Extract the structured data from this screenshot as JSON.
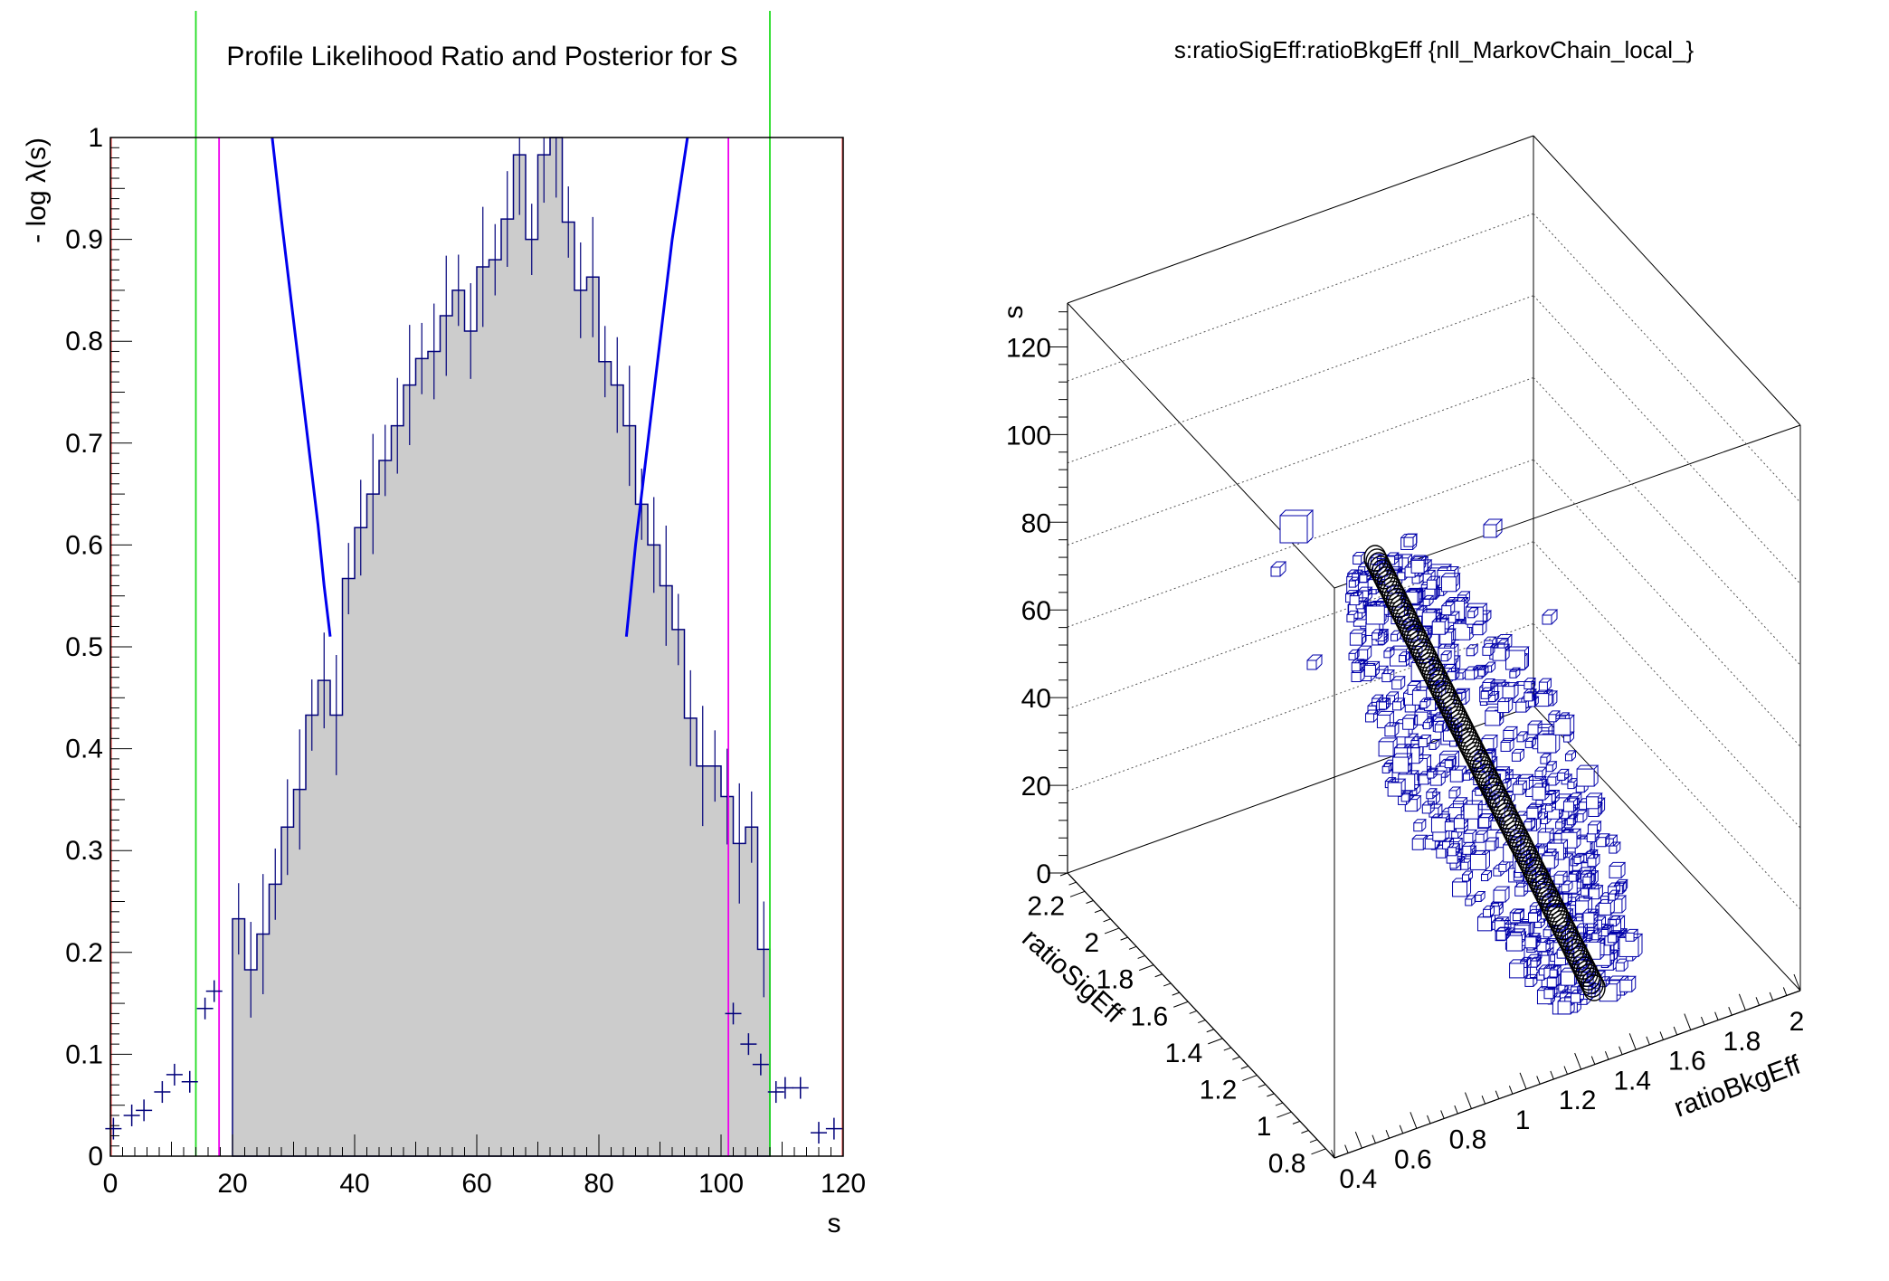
{
  "chart_data": [
    {
      "type": "bar",
      "title": "Profile Likelihood Ratio and Posterior for S",
      "xlabel": "s",
      "ylabel": "- log λ(s)",
      "xlim": [
        0,
        120
      ],
      "ylim": [
        0,
        1
      ],
      "xticks": [
        "0",
        "20",
        "40",
        "60",
        "80",
        "100",
        "120"
      ],
      "yticks": [
        "0",
        "0.1",
        "0.2",
        "0.3",
        "0.4",
        "0.5",
        "0.6",
        "0.7",
        "0.8",
        "0.9",
        "1"
      ],
      "posterior_hist": {
        "bin_width": 2,
        "x_start": 20,
        "fill": "#cccccc",
        "line": "#00007a",
        "values": [
          0.233,
          0.183,
          0.218,
          0.267,
          0.323,
          0.36,
          0.433,
          0.467,
          0.433,
          0.567,
          0.617,
          0.65,
          0.683,
          0.717,
          0.757,
          0.783,
          0.79,
          0.825,
          0.85,
          0.81,
          0.873,
          0.88,
          0.92,
          0.983,
          0.9,
          0.983,
          1.0,
          0.917,
          0.85,
          0.863,
          0.78,
          0.757,
          0.717,
          0.64,
          0.6,
          0.56,
          0.517,
          0.43,
          0.383,
          0.383,
          0.353,
          0.307,
          0.323,
          0.203
        ]
      },
      "markers": {
        "color": "#00007a",
        "points": [
          [
            0.5,
            0.027
          ],
          [
            3.5,
            0.04
          ],
          [
            5.5,
            0.045
          ],
          [
            8.5,
            0.063
          ],
          [
            10.5,
            0.08
          ],
          [
            13,
            0.073
          ],
          [
            15.5,
            0.145
          ],
          [
            17,
            0.162
          ],
          [
            102,
            0.14
          ],
          [
            104.5,
            0.11
          ],
          [
            106.5,
            0.09
          ],
          [
            109,
            0.063
          ],
          [
            110.5,
            0.067
          ],
          [
            113,
            0.067
          ],
          [
            116,
            0.023
          ],
          [
            118.5,
            0.027
          ]
        ]
      },
      "profile_curve": {
        "color": "#0000ee",
        "left": [
          [
            26.5,
            1.0
          ],
          [
            28,
            0.92
          ],
          [
            30,
            0.82
          ],
          [
            32,
            0.72
          ],
          [
            34,
            0.62
          ],
          [
            35,
            0.56
          ],
          [
            36,
            0.51
          ]
        ],
        "right": [
          [
            84.5,
            0.51
          ],
          [
            86,
            0.6
          ],
          [
            88,
            0.7
          ],
          [
            90,
            0.8
          ],
          [
            92,
            0.9
          ],
          [
            94.5,
            1.0
          ]
        ]
      },
      "vertical_lines": [
        {
          "x": 14,
          "color": "#22dd22"
        },
        {
          "x": 108,
          "color": "#22dd22"
        },
        {
          "x": 17.8,
          "color": "#ee00ee"
        },
        {
          "x": 101.2,
          "color": "#ee00ee"
        },
        {
          "x": 0.1,
          "color": "#ee4444"
        },
        {
          "x": 119.9,
          "color": "#ee4444"
        }
      ]
    },
    {
      "type": "scatter",
      "title": "s:ratioSigEff:ratioBkgEff {nll_MarkovChain_local_}",
      "xlabel": "ratioBkgEff",
      "ylabel": "ratioSigEff",
      "zlabel": "s",
      "x_ticks": [
        "0.4",
        "0.6",
        "0.8",
        "1",
        "1.2",
        "1.4",
        "1.6",
        "1.8",
        "2"
      ],
      "y_ticks": [
        "0.8",
        "1",
        "1.2",
        "1.4",
        "1.6",
        "1.8",
        "2",
        "2.2"
      ],
      "z_ticks": [
        "0",
        "20",
        "40",
        "60",
        "80",
        "100",
        "120"
      ],
      "box_color": "#0000aa",
      "circle_color": "#000000",
      "circle_chain": [
        [
          60,
          85
        ],
        [
          80,
          70
        ],
        [
          100,
          54
        ],
        [
          120,
          40
        ],
        [
          140,
          26
        ],
        [
          160,
          12
        ]
      ],
      "scatter_boxes_band": {
        "t_range": [
          0,
          1
        ],
        "start": [
          60,
          85
        ],
        "end": [
          195,
          10
        ],
        "spread": 60,
        "count": 600
      }
    }
  ]
}
